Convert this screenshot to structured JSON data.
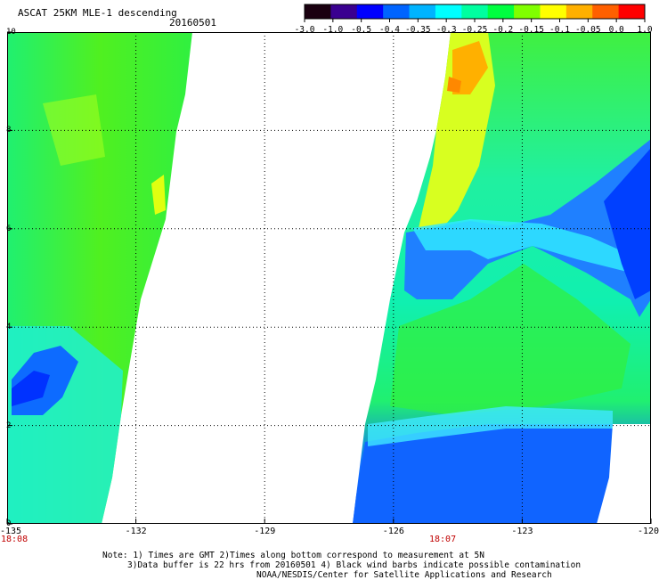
{
  "title": "ASCAT 25KM MLE-1 descending",
  "date": "20160501",
  "colorbar": {
    "labels": [
      "-3.0",
      "-1.0",
      "-0.5",
      "-0.4",
      "-0.35",
      "-0.3",
      "-0.25",
      "-0.2",
      "-0.15",
      "-0.1",
      "-0.05",
      "0.0",
      "1.0"
    ],
    "colors": [
      "#1a0010",
      "#3a0090",
      "#0000ff",
      "#0064ff",
      "#00b4ff",
      "#00ffff",
      "#00ffa0",
      "#00ff40",
      "#80ff00",
      "#ffff00",
      "#ffb000",
      "#ff6000",
      "#ff0000"
    ]
  },
  "axes": {
    "x_ticks": [
      "-135",
      "-132",
      "-129",
      "-126",
      "-123",
      "-120"
    ],
    "y_ticks": [
      "0",
      "2",
      "4",
      "6",
      "8",
      "10"
    ],
    "xlim": [
      -135,
      -120
    ],
    "ylim": [
      0,
      10
    ]
  },
  "time_labels": [
    "18:08",
    "18:07"
  ],
  "note": {
    "line1": "Note: 1) Times are GMT 2)Times along bottom correspond to measurement at 5N",
    "line2": "3)Data buffer is 22 hrs from 20160501 4) Black wind barbs indicate possible contamination",
    "line3": "NOAA/NESDIS/Center for Satellite Applications and Research"
  }
}
